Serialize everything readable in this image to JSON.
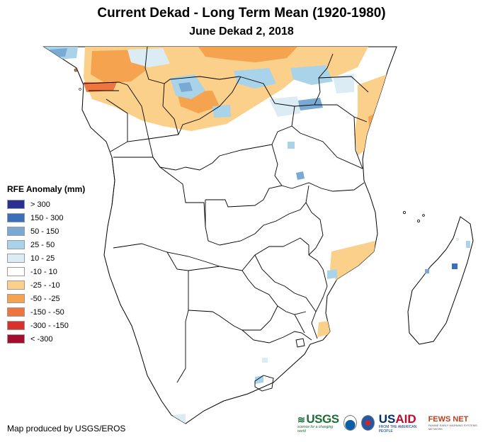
{
  "title": "Current Dekad - Long Term Mean (1920-1980)",
  "subtitle": "June Dekad 2, 2018",
  "legend": {
    "title": "RFE Anomaly (mm)",
    "items": [
      {
        "label": "> 300",
        "color": "#2b2f91"
      },
      {
        "label": "150 - 300",
        "color": "#3a6fba"
      },
      {
        "label": "50 - 150",
        "color": "#7aaad3"
      },
      {
        "label": "25 - 50",
        "color": "#a9d3e9"
      },
      {
        "label": "10 - 25",
        "color": "#dcecf5"
      },
      {
        "label": "-10 - 10",
        "color": "#ffffff"
      },
      {
        "label": "-25 - -10",
        "color": "#fbd08a"
      },
      {
        "label": "-50 - -25",
        "color": "#f5a34f"
      },
      {
        "label": "-150 - -50",
        "color": "#ee7440"
      },
      {
        "label": "-300 - -150",
        "color": "#d8302a"
      },
      {
        "label": "< -300",
        "color": "#a50d2f"
      }
    ]
  },
  "credit": "Map produced by USGS/EROS",
  "logos": {
    "usgs": "USGS",
    "usgs_tagline": "science for a changing world",
    "usaid_us": "US",
    "usaid_aid": "AID",
    "usaid_tagline": "FROM THE AMERICAN PEOPLE",
    "fews": "FEWS NET",
    "fews_tagline": "FAMINE EARLY WARNING SYSTEMS NETWORK"
  },
  "colors": {
    "border": "#000000",
    "land": "#ffffff",
    "dry_light": "#fbd08a",
    "dry_mid": "#f5a34f",
    "dry_strong": "#ee7440",
    "wet_light": "#dcecf5",
    "wet_mid": "#a9d3e9",
    "wet_strong": "#7aaad3",
    "wet_dark": "#3a6fba"
  }
}
